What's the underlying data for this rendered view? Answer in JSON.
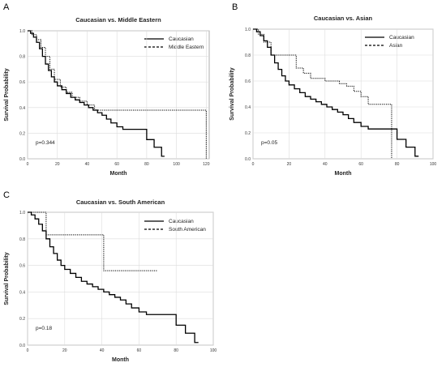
{
  "chart_data": [
    {
      "panel": "A",
      "type": "line",
      "title": "Caucasian vs. Middle Eastern",
      "xlabel": "Month",
      "ylabel": "Survival Probability",
      "xlim": [
        0,
        122
      ],
      "ylim": [
        0,
        1.0
      ],
      "xticks": [
        "0",
        "20",
        "40",
        "60",
        "80",
        "100",
        "120"
      ],
      "yticks": [
        "0.0",
        "0.2",
        "0.4",
        "0.6",
        "0.8",
        "1.0"
      ],
      "legend_placement": "top-right",
      "annotation": "p=0.344",
      "grid": true,
      "series": [
        {
          "name": "Caucasian",
          "style": "solid",
          "x": [
            0,
            2,
            4,
            6,
            8,
            10,
            12,
            14,
            16,
            18,
            20,
            23,
            26,
            29,
            32,
            35,
            38,
            41,
            44,
            47,
            50,
            53,
            56,
            60,
            64,
            68,
            80,
            85,
            90,
            92
          ],
          "y": [
            1.0,
            0.98,
            0.95,
            0.91,
            0.86,
            0.8,
            0.74,
            0.69,
            0.64,
            0.6,
            0.57,
            0.54,
            0.51,
            0.48,
            0.46,
            0.44,
            0.42,
            0.4,
            0.38,
            0.36,
            0.34,
            0.31,
            0.28,
            0.25,
            0.23,
            0.23,
            0.15,
            0.09,
            0.02,
            0.02
          ]
        },
        {
          "name": "Middle Eastern",
          "style": "dotted",
          "x": [
            0,
            3,
            6,
            9,
            12,
            15,
            18,
            22,
            26,
            30,
            35,
            40,
            45,
            120,
            120
          ],
          "y": [
            1.0,
            0.97,
            0.93,
            0.87,
            0.8,
            0.7,
            0.62,
            0.56,
            0.52,
            0.48,
            0.45,
            0.42,
            0.38,
            0.38,
            0.0
          ]
        }
      ]
    },
    {
      "panel": "B",
      "type": "line",
      "title": "Caucasian vs. Asian",
      "xlabel": "Month",
      "ylabel": "Survival Probability",
      "xlim": [
        0,
        100
      ],
      "ylim": [
        0,
        1.0
      ],
      "xticks": [
        "0",
        "20",
        "40",
        "60",
        "80",
        "100"
      ],
      "yticks": [
        "0.0",
        "0.2",
        "0.4",
        "0.6",
        "0.8",
        "1.0"
      ],
      "legend_placement": "top-right",
      "annotation": "p=0.05",
      "grid": true,
      "series": [
        {
          "name": "Caucasian",
          "style": "solid",
          "x": [
            0,
            2,
            4,
            6,
            8,
            10,
            12,
            14,
            16,
            18,
            20,
            23,
            26,
            29,
            32,
            35,
            38,
            41,
            44,
            47,
            50,
            53,
            56,
            60,
            64,
            68,
            80,
            85,
            90,
            92
          ],
          "y": [
            1.0,
            0.98,
            0.95,
            0.91,
            0.86,
            0.8,
            0.74,
            0.69,
            0.64,
            0.6,
            0.57,
            0.54,
            0.51,
            0.48,
            0.46,
            0.44,
            0.42,
            0.4,
            0.38,
            0.36,
            0.34,
            0.31,
            0.28,
            0.25,
            0.23,
            0.23,
            0.15,
            0.09,
            0.02,
            0.02
          ]
        },
        {
          "name": "Asian",
          "style": "dotted",
          "x": [
            0,
            3,
            6,
            10,
            20,
            24,
            28,
            32,
            40,
            48,
            52,
            56,
            60,
            64,
            77,
            77
          ],
          "y": [
            1.0,
            0.96,
            0.9,
            0.8,
            0.8,
            0.7,
            0.66,
            0.62,
            0.6,
            0.58,
            0.56,
            0.52,
            0.48,
            0.42,
            0.42,
            0.0
          ]
        }
      ]
    },
    {
      "panel": "C",
      "type": "line",
      "title": "Caucasian vs. South American",
      "xlabel": "Month",
      "ylabel": "Survival Probability",
      "xlim": [
        0,
        100
      ],
      "ylim": [
        0,
        1.0
      ],
      "xticks": [
        "0",
        "20",
        "40",
        "60",
        "80",
        "100"
      ],
      "yticks": [
        "0.0",
        "0.2",
        "0.4",
        "0.6",
        "0.8",
        "1.0"
      ],
      "legend_placement": "top-right",
      "annotation": "p=0.18",
      "grid": true,
      "series": [
        {
          "name": "Caucasian",
          "style": "solid",
          "x": [
            0,
            2,
            4,
            6,
            8,
            10,
            12,
            14,
            16,
            18,
            20,
            23,
            26,
            29,
            32,
            35,
            38,
            41,
            44,
            47,
            50,
            53,
            56,
            60,
            64,
            68,
            80,
            85,
            90,
            92
          ],
          "y": [
            1.0,
            0.98,
            0.95,
            0.91,
            0.86,
            0.8,
            0.74,
            0.69,
            0.64,
            0.6,
            0.57,
            0.54,
            0.51,
            0.48,
            0.46,
            0.44,
            0.42,
            0.4,
            0.38,
            0.36,
            0.34,
            0.31,
            0.28,
            0.25,
            0.23,
            0.23,
            0.15,
            0.09,
            0.02,
            0.02
          ]
        },
        {
          "name": "South American",
          "style": "dotted",
          "x": [
            0,
            10,
            10,
            41,
            41,
            70
          ],
          "y": [
            1.0,
            1.0,
            0.83,
            0.83,
            0.56,
            0.56
          ]
        }
      ]
    }
  ]
}
